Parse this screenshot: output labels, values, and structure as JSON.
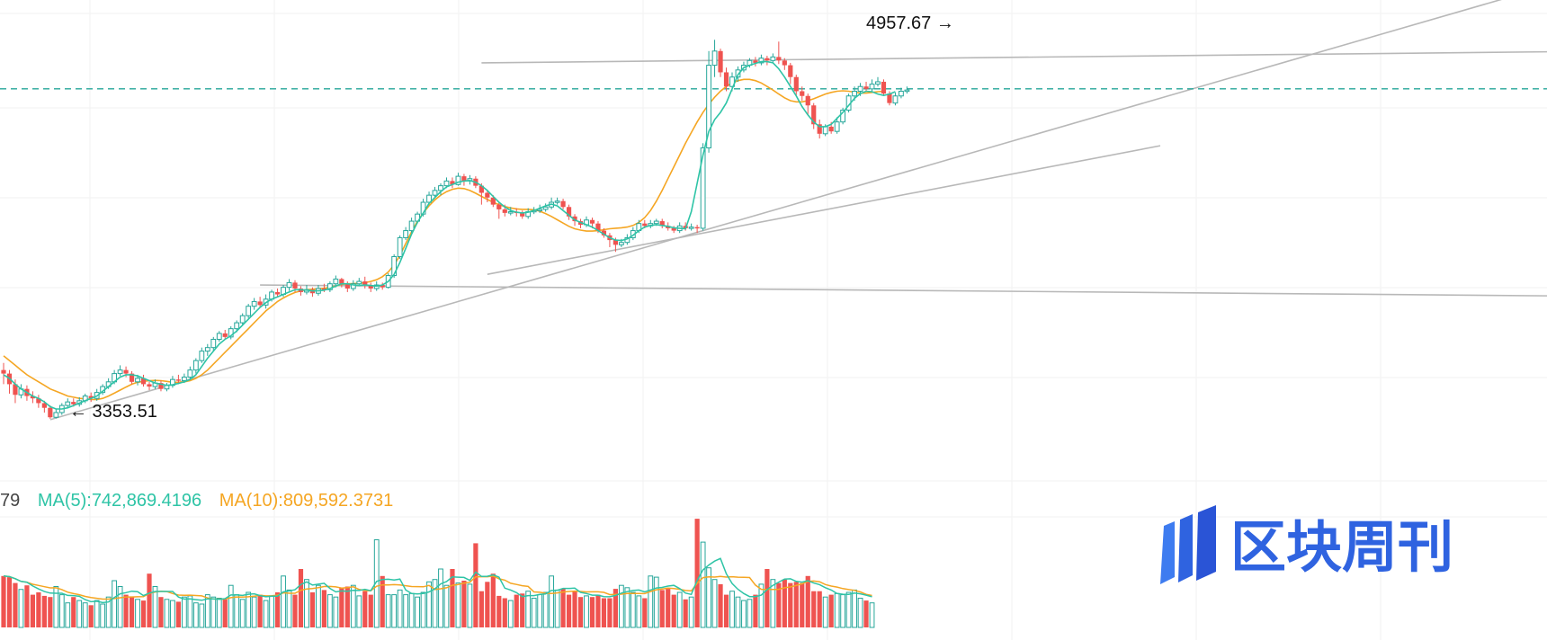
{
  "chart_data": {
    "type": "candlestick",
    "price_annotations": {
      "low": {
        "label": "← 3353.51",
        "value": 3353.51
      },
      "high": {
        "label": "4957.67 →",
        "value": 4957.67
      }
    },
    "price_range": [
      3300,
      5050
    ],
    "dashed_level": 4750,
    "colors": {
      "up": "#26a69a",
      "down": "#ef5350",
      "ma5": "#2ec4a6",
      "ma10": "#f5a623",
      "trendline": "#b8b8b8",
      "dashed": "#26a69a",
      "grid": "#f2f2f2"
    },
    "candles": [
      [
        3560,
        3545,
        3590,
        3500
      ],
      [
        3545,
        3500,
        3560,
        3460
      ],
      [
        3500,
        3455,
        3520,
        3420
      ],
      [
        3455,
        3480,
        3500,
        3440
      ],
      [
        3480,
        3450,
        3495,
        3430
      ],
      [
        3450,
        3440,
        3470,
        3420
      ],
      [
        3440,
        3420,
        3455,
        3400
      ],
      [
        3420,
        3400,
        3430,
        3380
      ],
      [
        3400,
        3360,
        3410,
        3353.51
      ],
      [
        3360,
        3380,
        3395,
        3355
      ],
      [
        3380,
        3410,
        3420,
        3370
      ],
      [
        3410,
        3425,
        3440,
        3400
      ],
      [
        3425,
        3415,
        3440,
        3405
      ],
      [
        3415,
        3430,
        3445,
        3405
      ],
      [
        3430,
        3450,
        3460,
        3420
      ],
      [
        3450,
        3440,
        3465,
        3425
      ],
      [
        3440,
        3465,
        3480,
        3430
      ],
      [
        3465,
        3490,
        3500,
        3455
      ],
      [
        3490,
        3510,
        3525,
        3480
      ],
      [
        3510,
        3545,
        3560,
        3500
      ],
      [
        3545,
        3560,
        3580,
        3535
      ],
      [
        3560,
        3545,
        3575,
        3530
      ],
      [
        3545,
        3510,
        3555,
        3500
      ],
      [
        3510,
        3525,
        3540,
        3495
      ],
      [
        3525,
        3500,
        3540,
        3490
      ],
      [
        3500,
        3490,
        3510,
        3475
      ],
      [
        3490,
        3505,
        3520,
        3480
      ],
      [
        3505,
        3480,
        3515,
        3470
      ],
      [
        3480,
        3495,
        3505,
        3470
      ],
      [
        3495,
        3520,
        3535,
        3485
      ],
      [
        3520,
        3515,
        3540,
        3500
      ],
      [
        3515,
        3530,
        3545,
        3505
      ],
      [
        3530,
        3560,
        3575,
        3520
      ],
      [
        3560,
        3600,
        3610,
        3545
      ],
      [
        3600,
        3640,
        3655,
        3590
      ],
      [
        3640,
        3655,
        3670,
        3620
      ],
      [
        3655,
        3690,
        3700,
        3640
      ],
      [
        3690,
        3715,
        3725,
        3680
      ],
      [
        3715,
        3700,
        3730,
        3690
      ],
      [
        3700,
        3735,
        3745,
        3690
      ],
      [
        3735,
        3760,
        3770,
        3720
      ],
      [
        3760,
        3790,
        3800,
        3750
      ],
      [
        3790,
        3830,
        3840,
        3780
      ],
      [
        3830,
        3850,
        3865,
        3815
      ],
      [
        3850,
        3835,
        3870,
        3825
      ],
      [
        3835,
        3860,
        3880,
        3820
      ],
      [
        3860,
        3890,
        3900,
        3850
      ],
      [
        3890,
        3880,
        3905,
        3870
      ],
      [
        3880,
        3910,
        3920,
        3870
      ],
      [
        3910,
        3930,
        3945,
        3895
      ],
      [
        3930,
        3905,
        3940,
        3890
      ],
      [
        3905,
        3890,
        3915,
        3875
      ],
      [
        3890,
        3900,
        3920,
        3880
      ],
      [
        3900,
        3885,
        3910,
        3870
      ],
      [
        3885,
        3905,
        3920,
        3875
      ],
      [
        3905,
        3900,
        3925,
        3890
      ],
      [
        3900,
        3925,
        3935,
        3890
      ],
      [
        3925,
        3945,
        3960,
        3910
      ],
      [
        3945,
        3925,
        3950,
        3910
      ],
      [
        3925,
        3905,
        3935,
        3890
      ],
      [
        3905,
        3925,
        3940,
        3895
      ],
      [
        3925,
        3935,
        3950,
        3915
      ],
      [
        3935,
        3920,
        3955,
        3905
      ],
      [
        3920,
        3905,
        3930,
        3890
      ],
      [
        3905,
        3920,
        3935,
        3895
      ],
      [
        3920,
        3910,
        3930,
        3900
      ],
      [
        3910,
        3960,
        3970,
        3905
      ],
      [
        3960,
        4040,
        4050,
        3950
      ],
      [
        4040,
        4120,
        4130,
        4030
      ],
      [
        4120,
        4150,
        4165,
        4110
      ],
      [
        4150,
        4190,
        4205,
        4140
      ],
      [
        4190,
        4220,
        4230,
        4180
      ],
      [
        4220,
        4270,
        4285,
        4210
      ],
      [
        4270,
        4300,
        4315,
        4260
      ],
      [
        4300,
        4320,
        4335,
        4290
      ],
      [
        4320,
        4340,
        4350,
        4300
      ],
      [
        4340,
        4360,
        4375,
        4330
      ],
      [
        4360,
        4345,
        4375,
        4330
      ],
      [
        4345,
        4380,
        4395,
        4340
      ],
      [
        4380,
        4360,
        4390,
        4340
      ],
      [
        4360,
        4370,
        4385,
        4345
      ],
      [
        4370,
        4340,
        4380,
        4330
      ],
      [
        4340,
        4310,
        4350,
        4260
      ],
      [
        4310,
        4290,
        4320,
        4270
      ],
      [
        4290,
        4260,
        4300,
        4250
      ],
      [
        4260,
        4240,
        4270,
        4200
      ],
      [
        4240,
        4225,
        4260,
        4210
      ],
      [
        4225,
        4230,
        4250,
        4215
      ],
      [
        4230,
        4225,
        4245,
        4210
      ],
      [
        4225,
        4210,
        4235,
        4200
      ],
      [
        4210,
        4230,
        4245,
        4200
      ],
      [
        4230,
        4235,
        4250,
        4220
      ],
      [
        4235,
        4240,
        4260,
        4225
      ],
      [
        4240,
        4250,
        4265,
        4230
      ],
      [
        4250,
        4270,
        4290,
        4240
      ],
      [
        4270,
        4275,
        4290,
        4260
      ],
      [
        4275,
        4250,
        4285,
        4240
      ],
      [
        4250,
        4210,
        4260,
        4195
      ],
      [
        4210,
        4190,
        4220,
        4170
      ],
      [
        4190,
        4175,
        4200,
        4160
      ],
      [
        4175,
        4195,
        4210,
        4165
      ],
      [
        4195,
        4180,
        4205,
        4160
      ],
      [
        4180,
        4150,
        4190,
        4140
      ],
      [
        4150,
        4130,
        4160,
        4120
      ],
      [
        4130,
        4110,
        4140,
        4080
      ],
      [
        4110,
        4090,
        4120,
        4060
      ],
      [
        4090,
        4100,
        4115,
        4080
      ],
      [
        4100,
        4120,
        4135,
        4090
      ],
      [
        4120,
        4150,
        4165,
        4110
      ],
      [
        4150,
        4180,
        4195,
        4140
      ],
      [
        4180,
        4170,
        4195,
        4160
      ],
      [
        4170,
        4180,
        4195,
        4160
      ],
      [
        4180,
        4190,
        4200,
        4170
      ],
      [
        4190,
        4170,
        4200,
        4160
      ],
      [
        4170,
        4160,
        4185,
        4150
      ],
      [
        4160,
        4150,
        4170,
        4140
      ],
      [
        4150,
        4170,
        4185,
        4140
      ],
      [
        4170,
        4160,
        4185,
        4150
      ],
      [
        4160,
        4165,
        4180,
        4150
      ],
      [
        4165,
        4160,
        4175,
        4140
      ],
      [
        4160,
        4500,
        4520,
        4150
      ],
      [
        4500,
        4850,
        4910,
        4480
      ],
      [
        4850,
        4910,
        4957.67,
        4800
      ],
      [
        4910,
        4820,
        4920,
        4800
      ],
      [
        4820,
        4760,
        4840,
        4740
      ],
      [
        4760,
        4800,
        4820,
        4740
      ],
      [
        4800,
        4830,
        4845,
        4780
      ],
      [
        4830,
        4850,
        4865,
        4820
      ],
      [
        4850,
        4870,
        4880,
        4840
      ],
      [
        4870,
        4860,
        4885,
        4845
      ],
      [
        4860,
        4880,
        4895,
        4850
      ],
      [
        4880,
        4870,
        4890,
        4850
      ],
      [
        4870,
        4885,
        4900,
        4860
      ],
      [
        4885,
        4870,
        4950,
        4855
      ],
      [
        4870,
        4850,
        4880,
        4830
      ],
      [
        4850,
        4800,
        4860,
        4770
      ],
      [
        4800,
        4740,
        4810,
        4720
      ],
      [
        4740,
        4720,
        4760,
        4700
      ],
      [
        4720,
        4680,
        4730,
        4640
      ],
      [
        4680,
        4600,
        4690,
        4580
      ],
      [
        4600,
        4560,
        4620,
        4540
      ],
      [
        4560,
        4590,
        4600,
        4550
      ],
      [
        4590,
        4570,
        4610,
        4560
      ],
      [
        4570,
        4610,
        4630,
        4560
      ],
      [
        4610,
        4660,
        4670,
        4600
      ],
      [
        4660,
        4720,
        4730,
        4650
      ],
      [
        4720,
        4740,
        4760,
        4700
      ],
      [
        4740,
        4760,
        4775,
        4720
      ],
      [
        4760,
        4750,
        4780,
        4740
      ],
      [
        4750,
        4770,
        4790,
        4740
      ],
      [
        4770,
        4780,
        4800,
        4760
      ],
      [
        4780,
        4730,
        4790,
        4720
      ],
      [
        4730,
        4690,
        4740,
        4680
      ],
      [
        4690,
        4720,
        4735,
        4680
      ],
      [
        4720,
        4740,
        4755,
        4710
      ],
      [
        4740,
        4745,
        4760,
        4730
      ]
    ],
    "ma5": [
      3540,
      3525,
      3500,
      3480,
      3465,
      3450,
      3440,
      3425,
      3405,
      3395,
      3395,
      3400,
      3410,
      3420,
      3430,
      3440,
      3450,
      3470,
      3490,
      3510,
      3530,
      3540,
      3540,
      3535,
      3525,
      3515,
      3505,
      3500,
      3495,
      3498,
      3503,
      3510,
      3520,
      3540,
      3575,
      3610,
      3640,
      3670,
      3690,
      3705,
      3725,
      3750,
      3775,
      3800,
      3825,
      3845,
      3860,
      3870,
      3880,
      3890,
      3900,
      3900,
      3898,
      3895,
      3895,
      3898,
      3905,
      3915,
      3925,
      3925,
      3920,
      3918,
      3920,
      3918,
      3915,
      3920,
      3935,
      3965,
      4015,
      4075,
      4135,
      4185,
      4225,
      4265,
      4290,
      4315,
      4335,
      4345,
      4355,
      4360,
      4362,
      4355,
      4340,
      4320,
      4295,
      4270,
      4250,
      4235,
      4228,
      4225,
      4228,
      4235,
      4245,
      4255,
      4262,
      4255,
      4235,
      4215,
      4195,
      4185,
      4175,
      4165,
      4150,
      4135,
      4120,
      4110,
      4108,
      4115,
      4130,
      4150,
      4165,
      4172,
      4175,
      4172,
      4168,
      4162,
      4160,
      4158,
      4230,
      4350,
      4470,
      4570,
      4620,
      4650,
      4690,
      4750,
      4810,
      4840,
      4850,
      4858,
      4865,
      4865,
      4860,
      4835,
      4800,
      4760,
      4720,
      4675,
      4640,
      4610,
      4590,
      4590,
      4600,
      4625,
      4650,
      4680,
      4710,
      4730,
      4740,
      4738,
      4728,
      4722,
      4728,
      4738
    ],
    "ma10": [
      3620,
      3600,
      3580,
      3560,
      3540,
      3525,
      3510,
      3495,
      3480,
      3470,
      3460,
      3450,
      3445,
      3440,
      3438,
      3435,
      3435,
      3440,
      3450,
      3462,
      3475,
      3488,
      3500,
      3508,
      3512,
      3515,
      3516,
      3515,
      3512,
      3508,
      3508,
      3510,
      3515,
      3525,
      3540,
      3560,
      3585,
      3610,
      3635,
      3660,
      3685,
      3710,
      3735,
      3760,
      3785,
      3810,
      3830,
      3850,
      3865,
      3878,
      3888,
      3895,
      3900,
      3902,
      3904,
      3906,
      3910,
      3916,
      3922,
      3925,
      3926,
      3927,
      3930,
      3935,
      3942,
      3955,
      3975,
      4005,
      4045,
      4095,
      4145,
      4190,
      4225,
      4255,
      4280,
      4300,
      4315,
      4325,
      4330,
      4328,
      4320,
      4308,
      4295,
      4282,
      4270,
      4260,
      4252,
      4246,
      4242,
      4240,
      4240,
      4238,
      4232,
      4222,
      4210,
      4196,
      4182,
      4168,
      4158,
      4152,
      4148,
      4148,
      4150,
      4154,
      4158,
      4160,
      4162,
      4165,
      4172,
      4185,
      4205,
      4235,
      4275,
      4320,
      4370,
      4420,
      4470,
      4520,
      4565,
      4610,
      4650,
      4685,
      4715,
      4740,
      4760,
      4775,
      4785,
      4790,
      4790,
      4785,
      4775,
      4760,
      4745,
      4728,
      4712,
      4700,
      4695,
      4695,
      4700,
      4708,
      4718,
      4728,
      4735,
      4740,
      4742,
      4740,
      4736,
      4732,
      4732,
      4735,
      4738,
      4740
    ],
    "volume": {
      "legend_prefix": "79",
      "ma5_label": "MA(5):742,869.4196",
      "ma10_label": "MA(10):809,592.3731",
      "ma5_value": 742869.4196,
      "ma10_value": 809592.3731,
      "values": [
        880,
        860,
        760,
        650,
        720,
        560,
        600,
        540,
        520,
        700,
        560,
        420,
        520,
        460,
        420,
        380,
        460,
        400,
        520,
        800,
        700,
        560,
        520,
        480,
        460,
        920,
        700,
        520,
        480,
        460,
        440,
        520,
        540,
        420,
        400,
        560,
        520,
        500,
        480,
        720,
        560,
        480,
        600,
        520,
        560,
        460,
        540,
        600,
        880,
        640,
        560,
        1000,
        820,
        600,
        720,
        640,
        560,
        520,
        680,
        700,
        720,
        540,
        620,
        560,
        1500,
        880,
        560,
        560,
        640,
        560,
        580,
        520,
        600,
        780,
        820,
        1000,
        720,
        1000,
        760,
        800,
        740,
        1440,
        620,
        780,
        920,
        540,
        500,
        460,
        560,
        580,
        620,
        500,
        560,
        600,
        880,
        640,
        660,
        560,
        620,
        520,
        540,
        520,
        560,
        500,
        500,
        660,
        720,
        680,
        600,
        540,
        500,
        880,
        860,
        640,
        660,
        560,
        600,
        480,
        520,
        1860,
        1460,
        1020,
        820,
        740,
        560,
        620,
        520,
        460,
        480,
        560,
        740,
        1000,
        820,
        760,
        820,
        760,
        780,
        760,
        880,
        620,
        620,
        520,
        560,
        580,
        560,
        600,
        640,
        500,
        460,
        420
      ]
    },
    "watermark": "区块周刊"
  }
}
